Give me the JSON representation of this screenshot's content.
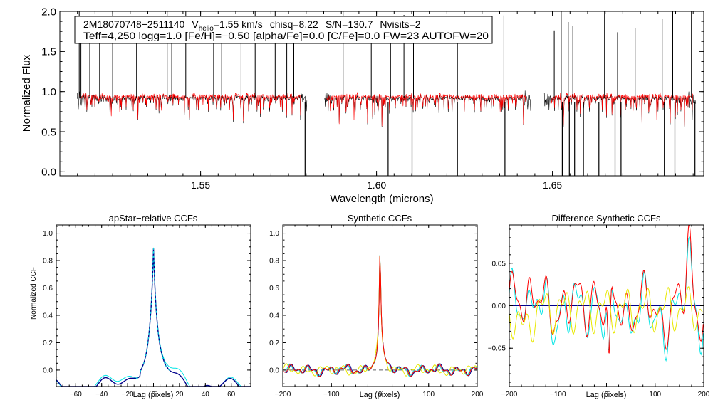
{
  "colors": {
    "observed": "#000000",
    "model": "#ff0000",
    "cyan": "#00e5e5",
    "navy": "#00008b",
    "yellow": "#e8e800",
    "dashed": "#606060"
  },
  "chart_data": [
    {
      "type": "line",
      "title": "",
      "xlabel": "Wavelength (microns)",
      "ylabel": "Normalized Flux",
      "xlim": [
        1.51,
        1.693
      ],
      "ylim": [
        -0.05,
        2.0
      ],
      "xticks": [
        1.55,
        1.6,
        1.65
      ],
      "xtick_labels": [
        "1.55",
        "1.60",
        "1.65"
      ],
      "yticks": [
        0.0,
        0.5,
        1.0,
        1.5,
        2.0
      ],
      "ytick_labels": [
        "0.0",
        "0.5",
        "1.0",
        "1.5",
        "2.0"
      ],
      "segments": [
        [
          1.5149,
          1.5802
        ],
        [
          1.5852,
          1.6438
        ],
        [
          1.6477,
          1.6907
        ]
      ],
      "continuum": 0.92,
      "series": [
        {
          "name": "observed spectrum",
          "color": "black"
        },
        {
          "name": "best-fit model",
          "color": "red"
        }
      ],
      "annotation": {
        "star": "2M18070748−2511140",
        "vhelio_prefix": "V",
        "vhelio_sub": "helio",
        "vhelio_value": "=1.55 km/s",
        "chisq": "chisq=8.22",
        "snr": "S/N=130.7",
        "nvisits": "Nvisits=2",
        "line2": "Teff=4,250 logg=1.0 [Fe/H]=−0.50 [alpha/Fe]=0.0 [C/Fe]=0.0 FW=23 AUTOFW=20"
      }
    },
    {
      "type": "line",
      "title": "apStar−relative CCFs",
      "xlabel": "Lag (pixels)",
      "ylabel": "Normalized CCF",
      "xlim": [
        -75,
        75
      ],
      "ylim": [
        -0.12,
        1.06
      ],
      "xticks": [
        -60,
        -40,
        -20,
        0,
        20,
        40,
        60
      ],
      "xtick_labels": [
        "−60",
        "−40",
        "−20",
        "0",
        "20",
        "40",
        "60"
      ],
      "yticks": [
        0.0,
        0.2,
        0.4,
        0.6,
        0.8,
        1.0
      ],
      "ytick_labels": [
        "0.0",
        "0.2",
        "0.4",
        "0.6",
        "0.8",
        "1.0"
      ],
      "peak_lag": 0,
      "series": [
        {
          "name": "ccf visit 1",
          "color": "cyan"
        },
        {
          "name": "ccf visit 2",
          "color": "navy"
        }
      ]
    },
    {
      "type": "line",
      "title": "Synthetic CCFs",
      "xlabel": "Lag (pixels)",
      "ylabel": "",
      "xlim": [
        -200,
        200
      ],
      "ylim": [
        -0.12,
        1.06
      ],
      "xticks": [
        -200,
        -100,
        0,
        100,
        200
      ],
      "xtick_labels": [
        "−200",
        "−100",
        "0",
        "100",
        "200"
      ],
      "yticks": [
        0.0,
        0.2,
        0.4,
        0.6,
        0.8,
        1.0
      ],
      "ytick_labels": [
        "0.0",
        "0.2",
        "0.4",
        "0.6",
        "0.8",
        "1.0"
      ],
      "zero_line": 0.0,
      "peak_lag": 0,
      "series": [
        {
          "name": "synthetic ccf 1",
          "color": "navy"
        },
        {
          "name": "synthetic ccf 2",
          "color": "cyan"
        },
        {
          "name": "synthetic ccf 3",
          "color": "yellow"
        },
        {
          "name": "synthetic ccf 4",
          "color": "red"
        }
      ]
    },
    {
      "type": "line",
      "title": "Difference Synthetic CCFs",
      "xlabel": "Lag (pixels)",
      "ylabel": "",
      "xlim": [
        -200,
        200
      ],
      "ylim": [
        -0.095,
        0.095
      ],
      "xticks": [
        -200,
        -100,
        0,
        100,
        200
      ],
      "xtick_labels": [
        "−200",
        "−100",
        "0",
        "100",
        "200"
      ],
      "yticks": [
        -0.05,
        0.0,
        0.05
      ],
      "ytick_labels": [
        "−0.05",
        "0.00",
        "0.05"
      ],
      "zero_line": 0.0,
      "min_point": {
        "lag": 5,
        "value": -0.08
      },
      "max_point": {
        "lag": 170,
        "value": 0.08
      },
      "series": [
        {
          "name": "difference 1",
          "color": "cyan"
        },
        {
          "name": "difference 2",
          "color": "red"
        },
        {
          "name": "difference 3",
          "color": "yellow"
        },
        {
          "name": "zero reference",
          "color": "navy"
        }
      ]
    }
  ]
}
